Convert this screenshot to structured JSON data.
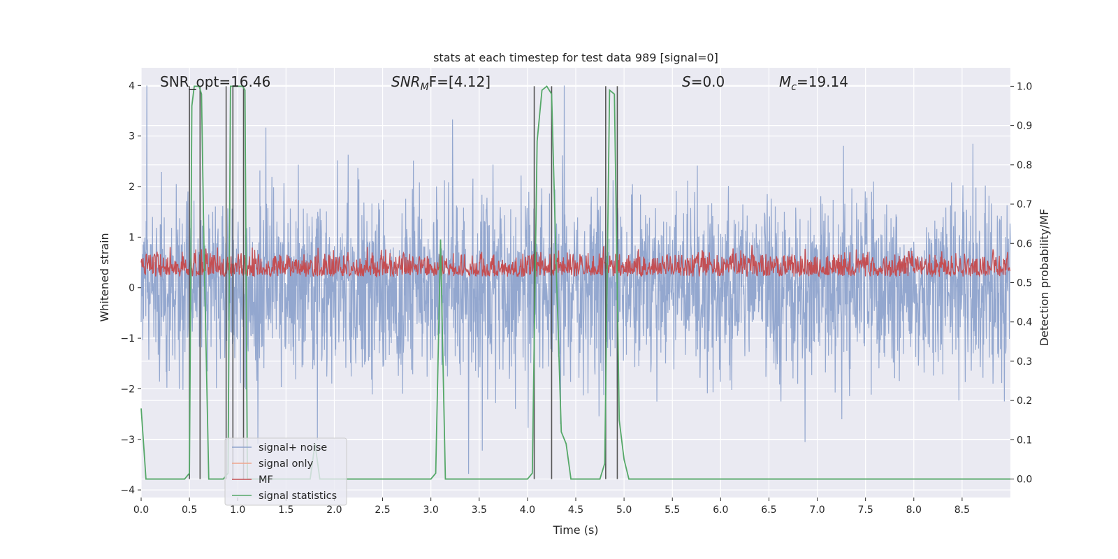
{
  "chart_data": {
    "type": "line",
    "title": "stats at each timestep for test data 989 [signal=0]",
    "xlabel": "Time (s)",
    "ylabel_left": "Whitened strain",
    "ylabel_right": "Detection probability/MF",
    "xlim": [
      0.0,
      9.0
    ],
    "ylim_left": [
      -4.15,
      4.35
    ],
    "ylim_right": [
      -0.047,
      1.047
    ],
    "xticks": [
      "0.0",
      "0.5",
      "1.0",
      "1.5",
      "2.0",
      "2.5",
      "3.0",
      "3.5",
      "4.0",
      "4.5",
      "5.0",
      "5.5",
      "6.0",
      "6.5",
      "7.0",
      "7.5",
      "8.0",
      "8.5"
    ],
    "yticks_left": [
      "4",
      "3",
      "2",
      "1",
      "0",
      "−1",
      "−2",
      "−3",
      "−4"
    ],
    "yticks_right": [
      "1.0",
      "0.9",
      "0.8",
      "0.7",
      "0.6",
      "0.5",
      "0.4",
      "0.3",
      "0.2",
      "0.1",
      "0.0"
    ],
    "grid": true,
    "legend_position": "lower-left",
    "annotations": {
      "snr_opt": "SNR_opt=16.46",
      "snr_mf_sym": "SNR",
      "snr_mf_sub": "M",
      "snr_mf_rest": "F=[4.12]",
      "s_sym": "S",
      "s_rest": "=0.0",
      "mc_sym": "M",
      "mc_sub": "c",
      "mc_rest": "=19.14"
    },
    "series": [
      {
        "name": "signal+ noise",
        "color": "#8ea3cc",
        "axis": "left",
        "kind": "noise",
        "amplitude_range": [
          -3.9,
          4.0
        ]
      },
      {
        "name": "signal only",
        "color": "#f0a58c",
        "axis": "left",
        "x": [],
        "y": []
      },
      {
        "name": "MF",
        "color": "#c44e52",
        "axis": "right",
        "kind": "noise",
        "value_range": [
          0.5,
          0.6
        ]
      },
      {
        "name": "signal statistics",
        "color": "#55a868",
        "axis": "right",
        "x": [
          0.0,
          0.05,
          0.1,
          0.15,
          0.2,
          0.3,
          0.4,
          0.45,
          0.5,
          0.525,
          0.55,
          0.6,
          0.625,
          0.65,
          0.7,
          0.8,
          0.85,
          0.9,
          0.925,
          0.95,
          1.0,
          1.05,
          1.075,
          1.1,
          1.15,
          1.3,
          1.5,
          1.6,
          1.7,
          1.75,
          1.8,
          1.85,
          2.0,
          2.5,
          3.0,
          3.05,
          3.1,
          3.125,
          3.15,
          3.2,
          3.25,
          3.3,
          3.5,
          4.0,
          4.05,
          4.1,
          4.15,
          4.2,
          4.25,
          4.3,
          4.35,
          4.4,
          4.45,
          4.5,
          4.6,
          4.7,
          4.75,
          4.8,
          4.85,
          4.9,
          4.95,
          5.0,
          5.05,
          5.1,
          5.5,
          6.0,
          7.0,
          8.0,
          9.0
        ],
        "y": [
          0.18,
          0.0,
          0.0,
          0.0,
          0.0,
          0.0,
          0.0,
          0.0,
          0.015,
          0.95,
          1.0,
          1.0,
          0.98,
          0.6,
          0.0,
          0.0,
          0.0,
          0.015,
          1.0,
          1.0,
          1.0,
          1.0,
          0.99,
          0.0,
          0.0,
          0.0,
          0.0,
          0.0,
          0.0,
          0.0,
          0.09,
          0.0,
          0.0,
          0.0,
          0.0,
          0.015,
          0.61,
          0.3,
          0.0,
          0.0,
          0.0,
          0.0,
          0.0,
          0.0,
          0.015,
          0.86,
          0.99,
          1.0,
          0.98,
          0.52,
          0.12,
          0.09,
          0.0,
          0.0,
          0.0,
          0.0,
          0.0,
          0.04,
          0.99,
          0.98,
          0.15,
          0.05,
          0.0,
          0.0,
          0.0,
          0.0,
          0.0,
          0.0,
          0.0
        ]
      }
    ],
    "vertical_markers": {
      "color": "#555555",
      "x": [
        0.5,
        0.61,
        0.88,
        0.95,
        1.06,
        4.07,
        4.25,
        4.81,
        4.93
      ]
    }
  }
}
